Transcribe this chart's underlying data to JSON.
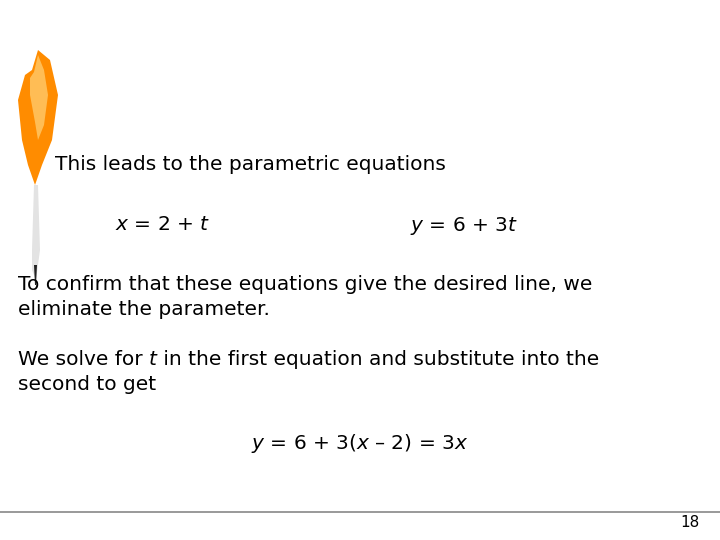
{
  "bg_color": "#ffffff",
  "footer_color": "#888888",
  "page_number": "18",
  "line1": "This leads to the parametric equations",
  "eq1_left": "$x$ = 2 + $t$",
  "eq1_right": "$y$ = 6 + 3$t$",
  "line2a": "To confirm that these equations give the desired line, we",
  "line2b": "eliminate the parameter.",
  "line3b": "second to get",
  "eq2": "$y$ = 6 + 3($x$ – 2) = 3$x$",
  "text_color": "#000000",
  "font_size_body": 14.5,
  "font_size_eq": 14.5,
  "font_size_page": 11
}
